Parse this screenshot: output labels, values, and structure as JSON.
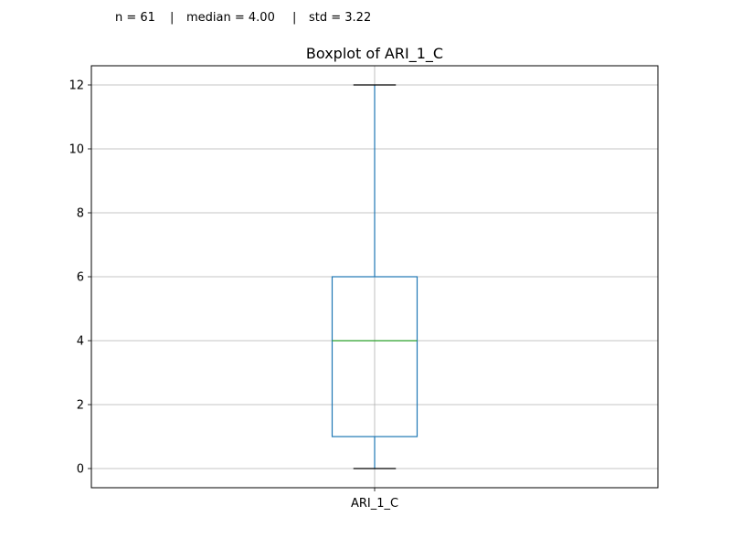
{
  "annotation": {
    "n_label": "n = 61",
    "median_label": "median = 4.00",
    "std_label": "std = 3.22",
    "separator": "|"
  },
  "chart_data": {
    "type": "box",
    "title": "Boxplot of ARI_1_C",
    "xlabel": "",
    "ylabel": "",
    "categories": [
      "ARI_1_C"
    ],
    "boxes": [
      {
        "category": "ARI_1_C",
        "whisker_low": 0,
        "q1": 1,
        "median": 4,
        "q3": 6,
        "whisker_high": 12
      }
    ],
    "ylim": [
      -0.6,
      12.6
    ],
    "yticks": [
      0,
      2,
      4,
      6,
      8,
      10,
      12
    ],
    "grid": true,
    "colors": {
      "box": "#1f77b4",
      "median": "#2ca02c",
      "cap": "#000000",
      "grid": "#b0b0b0",
      "axes": "#000000"
    }
  }
}
